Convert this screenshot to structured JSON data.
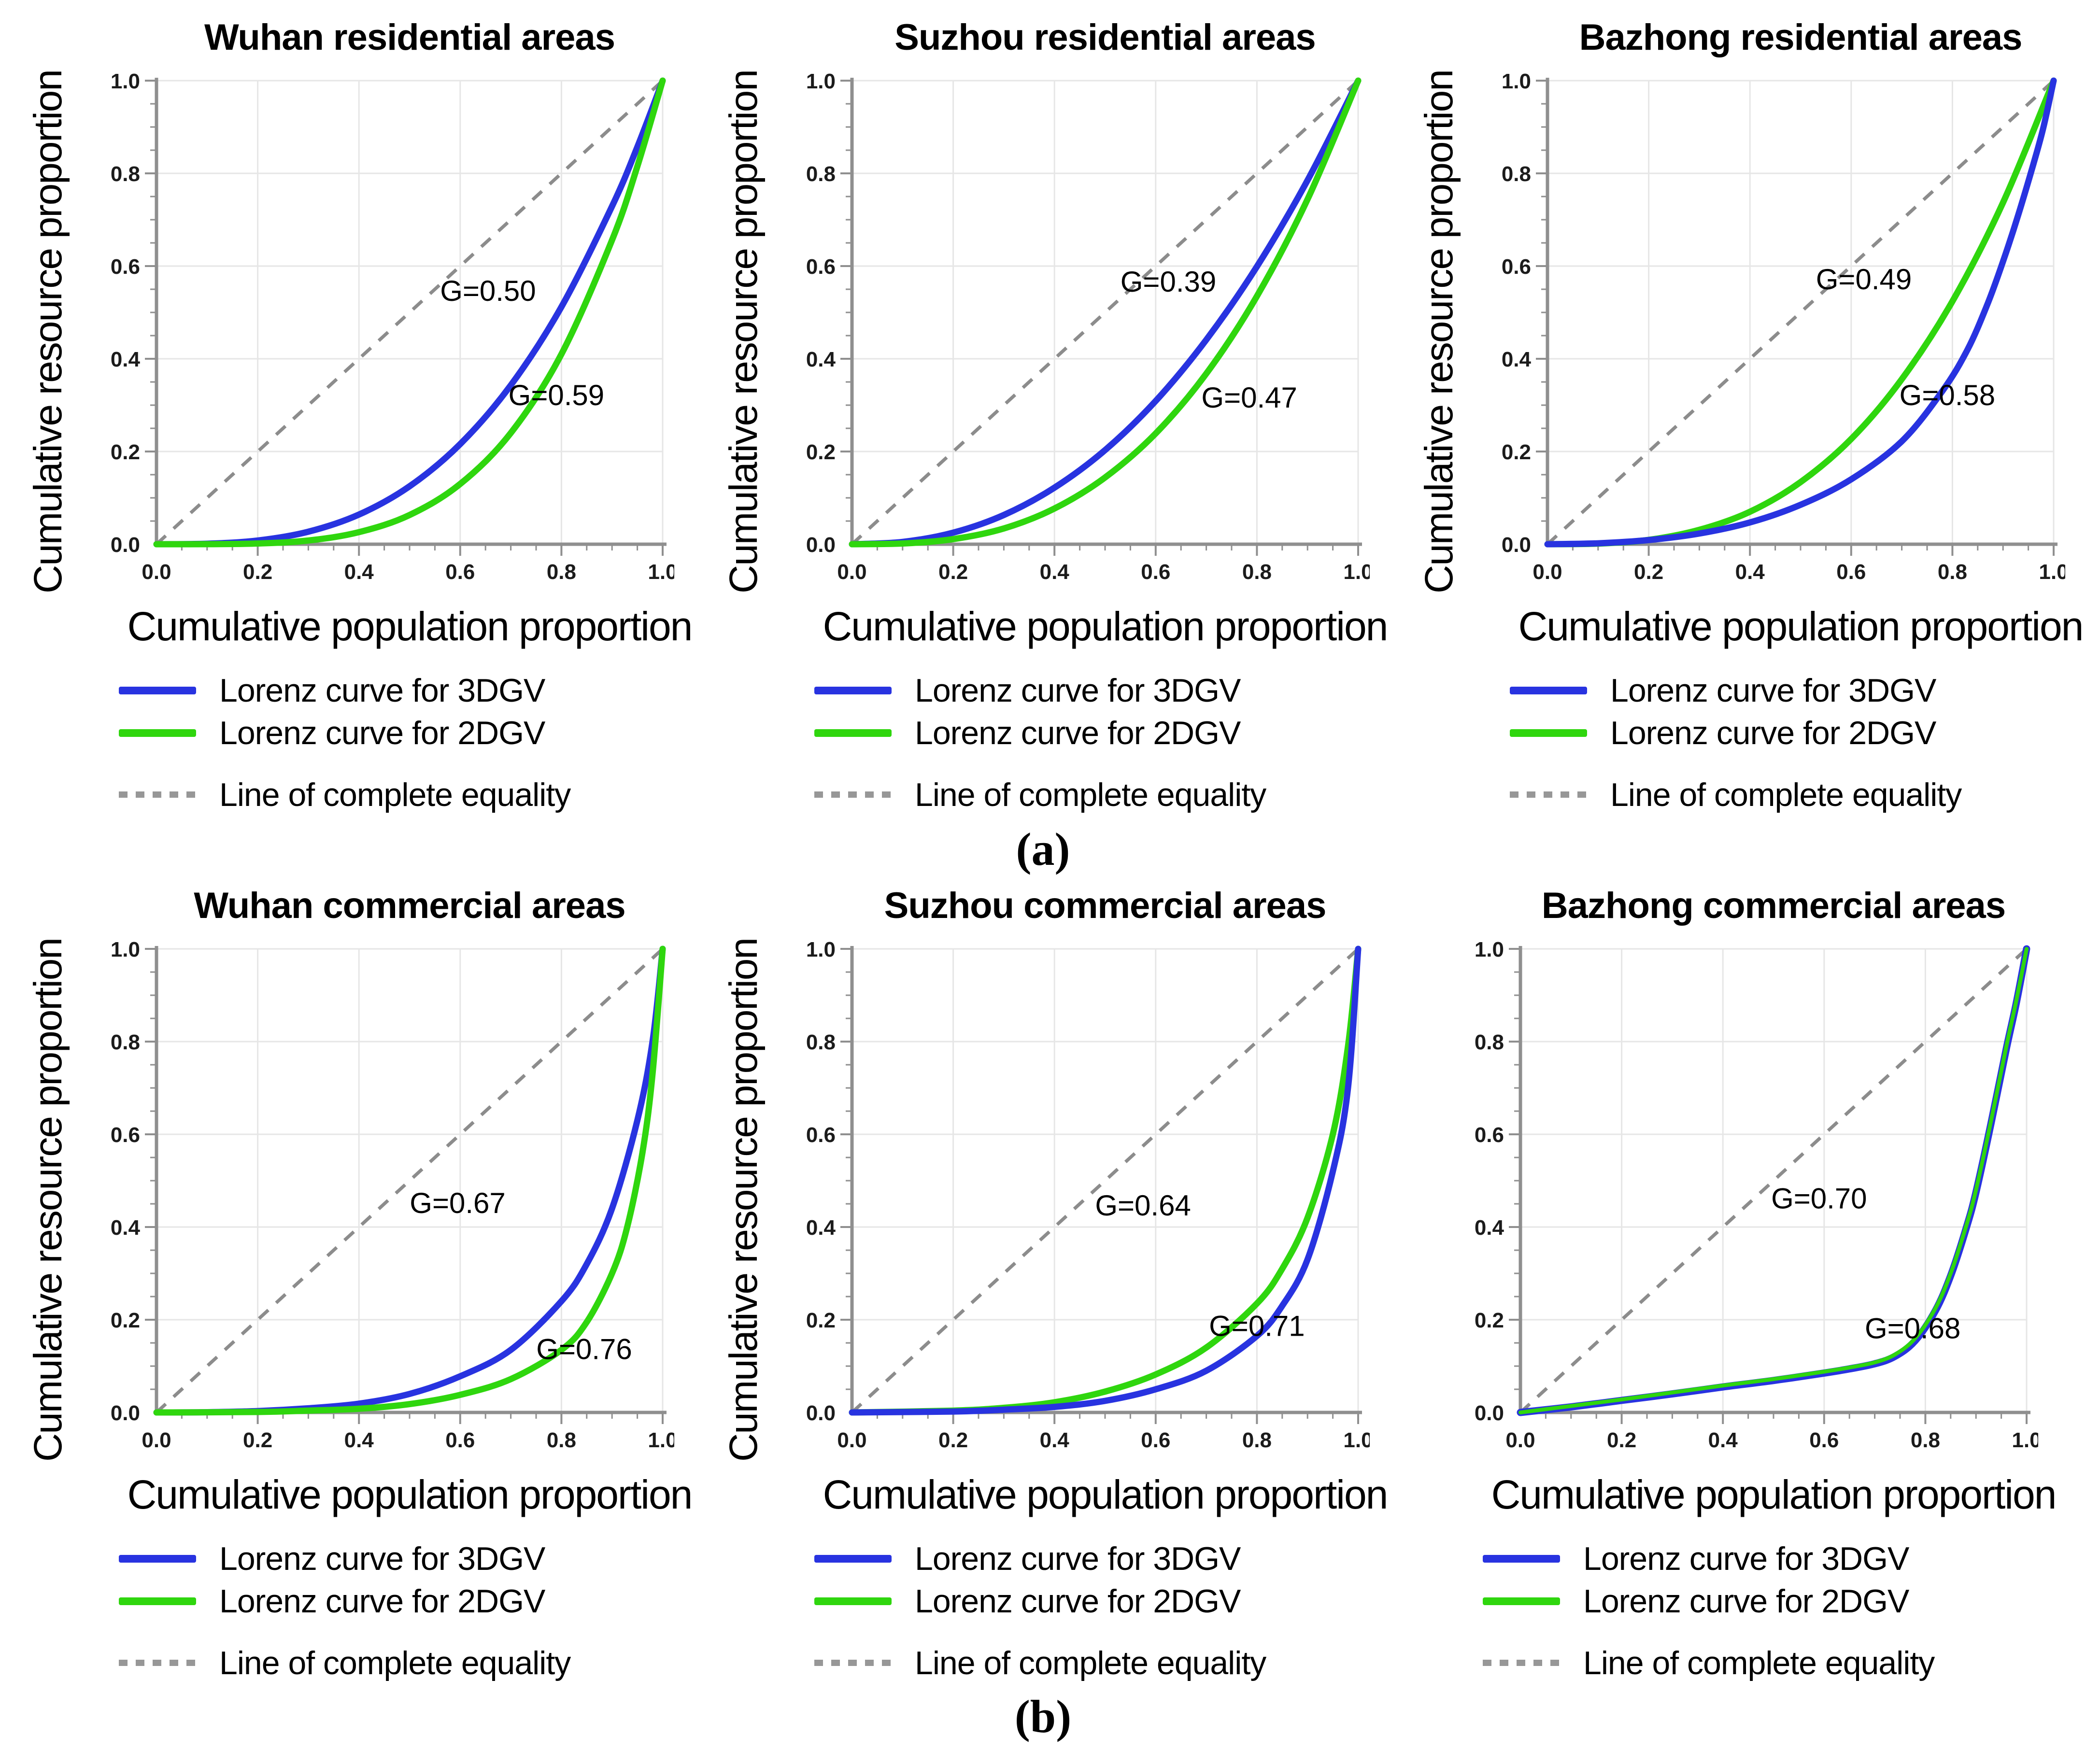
{
  "figure": {
    "panel_a_label": "(a)",
    "panel_b_label": "(b)"
  },
  "axes": {
    "xlabel": "Cumulative population proportion",
    "ylabel": "Cumulative resource proportion",
    "xlim": [
      0.0,
      1.0
    ],
    "ylim": [
      0.0,
      1.0
    ],
    "ticks": [
      0.0,
      0.2,
      0.4,
      0.6,
      0.8,
      1.0
    ],
    "tick_labels": [
      "0.0",
      "0.2",
      "0.4",
      "0.6",
      "0.8",
      "1.0"
    ],
    "minor_tick_step": 0.05,
    "grid": true
  },
  "legend": {
    "position": "below-chart",
    "items": [
      {
        "id": "lorenz-3dgv",
        "label": "Lorenz curve for 3DGV",
        "color": "#2833e0",
        "style": "solid"
      },
      {
        "id": "lorenz-2dgv",
        "label": "Lorenz curve for 2DGV",
        "color": "#2fd60e",
        "style": "solid"
      },
      {
        "id": "equality",
        "label": "Line of complete equality",
        "color": "#979797",
        "style": "dashed"
      }
    ]
  },
  "style": {
    "grid_color": "#e6e6e6",
    "axis_color": "#8f8f8f",
    "tick_color": "#8f8f8f",
    "equality_color": "#8c8c8c",
    "curve_3dgv_color": "#2833e0",
    "curve_2dgv_color": "#2fd60e"
  },
  "chart_data": [
    {
      "type": "line",
      "panel": "a",
      "title": "Wuhan residential areas",
      "xlabel": "Cumulative population proportion",
      "ylabel": "Cumulative resource proportion",
      "series": [
        {
          "name": "Line of complete equality",
          "role": "equality",
          "points": [
            [
              0,
              0
            ],
            [
              1,
              1
            ]
          ]
        },
        {
          "name": "Lorenz curve for 3DGV",
          "role": "3dgv",
          "points": [
            [
              0,
              0
            ],
            [
              0.1,
              0.001
            ],
            [
              0.2,
              0.008
            ],
            [
              0.3,
              0.027
            ],
            [
              0.4,
              0.064
            ],
            [
              0.5,
              0.125
            ],
            [
              0.6,
              0.216
            ],
            [
              0.7,
              0.343
            ],
            [
              0.8,
              0.512
            ],
            [
              0.9,
              0.729
            ],
            [
              0.95,
              0.857
            ],
            [
              1,
              1
            ]
          ]
        },
        {
          "name": "Lorenz curve for 2DGV",
          "role": "2dgv",
          "points": [
            [
              0,
              0
            ],
            [
              0.1,
              0.0001
            ],
            [
              0.2,
              0.0016
            ],
            [
              0.3,
              0.008
            ],
            [
              0.4,
              0.026
            ],
            [
              0.5,
              0.063
            ],
            [
              0.6,
              0.13
            ],
            [
              0.7,
              0.24
            ],
            [
              0.8,
              0.41
            ],
            [
              0.9,
              0.656
            ],
            [
              0.95,
              0.815
            ],
            [
              1,
              1
            ]
          ]
        }
      ],
      "annotations": [
        {
          "text": "G=0.50",
          "x": 0.655,
          "y": 0.525
        },
        {
          "text": "G=0.59",
          "x": 0.79,
          "y": 0.3
        }
      ]
    },
    {
      "type": "line",
      "panel": "a",
      "title": "Suzhou residential areas",
      "xlabel": "Cumulative population proportion",
      "ylabel": "Cumulative resource proportion",
      "series": [
        {
          "name": "Line of complete equality",
          "role": "equality",
          "points": [
            [
              0,
              0
            ],
            [
              1,
              1
            ]
          ]
        },
        {
          "name": "Lorenz curve for 3DGV",
          "role": "3dgv",
          "points": [
            [
              0,
              0
            ],
            [
              0.1,
              0.005
            ],
            [
              0.2,
              0.025
            ],
            [
              0.3,
              0.063
            ],
            [
              0.4,
              0.122
            ],
            [
              0.5,
              0.203
            ],
            [
              0.6,
              0.309
            ],
            [
              0.7,
              0.441
            ],
            [
              0.8,
              0.599
            ],
            [
              0.9,
              0.785
            ],
            [
              1,
              1
            ]
          ]
        },
        {
          "name": "Lorenz curve for 2DGV",
          "role": "2dgv",
          "points": [
            [
              0,
              0
            ],
            [
              0.1,
              0.0016
            ],
            [
              0.2,
              0.011
            ],
            [
              0.3,
              0.034
            ],
            [
              0.4,
              0.077
            ],
            [
              0.5,
              0.144
            ],
            [
              0.6,
              0.239
            ],
            [
              0.7,
              0.368
            ],
            [
              0.8,
              0.535
            ],
            [
              0.9,
              0.744
            ],
            [
              1,
              1
            ]
          ]
        }
      ],
      "annotations": [
        {
          "text": "G=0.39",
          "x": 0.625,
          "y": 0.545
        },
        {
          "text": "G=0.47",
          "x": 0.785,
          "y": 0.295
        }
      ]
    },
    {
      "type": "line",
      "panel": "a",
      "title": "Bazhong residential areas",
      "xlabel": "Cumulative population proportion",
      "ylabel": "Cumulative resource proportion",
      "series": [
        {
          "name": "Line of complete equality",
          "role": "equality",
          "points": [
            [
              0,
              0
            ],
            [
              1,
              1
            ]
          ]
        },
        {
          "name": "Lorenz curve for 2DGV",
          "role": "2dgv",
          "points": [
            [
              0,
              0
            ],
            [
              0.1,
              0.0013
            ],
            [
              0.2,
              0.0094
            ],
            [
              0.3,
              0.031
            ],
            [
              0.4,
              0.07
            ],
            [
              0.5,
              0.134
            ],
            [
              0.6,
              0.227
            ],
            [
              0.7,
              0.356
            ],
            [
              0.8,
              0.524
            ],
            [
              0.9,
              0.737
            ],
            [
              1,
              1
            ]
          ]
        },
        {
          "name": "Lorenz curve for 3DGV",
          "role": "3dgv",
          "points": [
            [
              0,
              0
            ],
            [
              0.1,
              0.002
            ],
            [
              0.2,
              0.009
            ],
            [
              0.3,
              0.023
            ],
            [
              0.4,
              0.047
            ],
            [
              0.5,
              0.085
            ],
            [
              0.6,
              0.14
            ],
            [
              0.7,
              0.222
            ],
            [
              0.78,
              0.33
            ],
            [
              0.83,
              0.42
            ],
            [
              0.87,
              0.52
            ],
            [
              0.9,
              0.61
            ],
            [
              0.93,
              0.71
            ],
            [
              0.96,
              0.82
            ],
            [
              0.98,
              0.9
            ],
            [
              1,
              1
            ]
          ]
        }
      ],
      "annotations": [
        {
          "text": "G=0.49",
          "x": 0.625,
          "y": 0.55
        },
        {
          "text": "G=0.58",
          "x": 0.79,
          "y": 0.3
        }
      ]
    },
    {
      "type": "line",
      "panel": "b",
      "title": "Wuhan commercial areas",
      "xlabel": "Cumulative population proportion",
      "ylabel": "Cumulative resource proportion",
      "series": [
        {
          "name": "Line of complete equality",
          "role": "equality",
          "points": [
            [
              0,
              0
            ],
            [
              1,
              1
            ]
          ]
        },
        {
          "name": "Lorenz curve for 3DGV",
          "role": "3dgv",
          "points": [
            [
              0,
              0
            ],
            [
              0.1,
              0.0005
            ],
            [
              0.2,
              0.003
            ],
            [
              0.3,
              0.009
            ],
            [
              0.4,
              0.019
            ],
            [
              0.5,
              0.04
            ],
            [
              0.6,
              0.078
            ],
            [
              0.7,
              0.135
            ],
            [
              0.8,
              0.24
            ],
            [
              0.85,
              0.32
            ],
            [
              0.9,
              0.44
            ],
            [
              0.95,
              0.63
            ],
            [
              0.98,
              0.8
            ],
            [
              1,
              1
            ]
          ]
        },
        {
          "name": "Lorenz curve for 2DGV",
          "role": "2dgv",
          "points": [
            [
              0,
              0
            ],
            [
              0.2,
              0.001
            ],
            [
              0.3,
              0.004
            ],
            [
              0.4,
              0.008
            ],
            [
              0.5,
              0.018
            ],
            [
              0.6,
              0.038
            ],
            [
              0.7,
              0.072
            ],
            [
              0.8,
              0.135
            ],
            [
              0.85,
              0.195
            ],
            [
              0.9,
              0.3
            ],
            [
              0.93,
              0.4
            ],
            [
              0.96,
              0.56
            ],
            [
              0.98,
              0.73
            ],
            [
              1,
              1
            ]
          ]
        }
      ],
      "annotations": [
        {
          "text": "G=0.67",
          "x": 0.595,
          "y": 0.43
        },
        {
          "text": "G=0.76",
          "x": 0.845,
          "y": 0.115
        }
      ]
    },
    {
      "type": "line",
      "panel": "b",
      "title": "Suzhou commercial areas",
      "xlabel": "Cumulative population proportion",
      "ylabel": "Cumulative resource proportion",
      "series": [
        {
          "name": "Line of complete equality",
          "role": "equality",
          "points": [
            [
              0,
              0
            ],
            [
              1,
              1
            ]
          ]
        },
        {
          "name": "Lorenz curve for 2DGV",
          "role": "2dgv",
          "points": [
            [
              0,
              0
            ],
            [
              0.2,
              0.004
            ],
            [
              0.3,
              0.01
            ],
            [
              0.4,
              0.022
            ],
            [
              0.5,
              0.045
            ],
            [
              0.6,
              0.082
            ],
            [
              0.7,
              0.14
            ],
            [
              0.8,
              0.235
            ],
            [
              0.85,
              0.31
            ],
            [
              0.9,
              0.42
            ],
            [
              0.95,
              0.6
            ],
            [
              0.98,
              0.79
            ],
            [
              1,
              1
            ]
          ]
        },
        {
          "name": "Lorenz curve for 3DGV",
          "role": "3dgv",
          "points": [
            [
              0,
              0
            ],
            [
              0.2,
              0.002
            ],
            [
              0.3,
              0.006
            ],
            [
              0.4,
              0.012
            ],
            [
              0.5,
              0.025
            ],
            [
              0.6,
              0.05
            ],
            [
              0.7,
              0.09
            ],
            [
              0.8,
              0.165
            ],
            [
              0.85,
              0.23
            ],
            [
              0.9,
              0.33
            ],
            [
              0.95,
              0.52
            ],
            [
              0.98,
              0.7
            ],
            [
              1,
              1
            ]
          ]
        }
      ],
      "annotations": [
        {
          "text": "G=0.64",
          "x": 0.575,
          "y": 0.425
        },
        {
          "text": "G=0.71",
          "x": 0.8,
          "y": 0.165
        }
      ]
    },
    {
      "type": "line",
      "panel": "b",
      "title": "Bazhong commercial areas",
      "xlabel": "Cumulative population proportion",
      "ylabel": "",
      "series": [
        {
          "name": "Line of complete equality",
          "role": "equality",
          "points": [
            [
              0,
              0
            ],
            [
              1,
              1
            ]
          ]
        },
        {
          "name": "Lorenz curve for 3DGV",
          "role": "3dgv",
          "width": 15,
          "points": [
            [
              0,
              0
            ],
            [
              0.1,
              0.012
            ],
            [
              0.2,
              0.026
            ],
            [
              0.3,
              0.04
            ],
            [
              0.4,
              0.055
            ],
            [
              0.5,
              0.069
            ],
            [
              0.6,
              0.085
            ],
            [
              0.65,
              0.094
            ],
            [
              0.7,
              0.105
            ],
            [
              0.74,
              0.121
            ],
            [
              0.78,
              0.155
            ],
            [
              0.82,
              0.22
            ],
            [
              0.85,
              0.295
            ],
            [
              0.88,
              0.395
            ],
            [
              0.9,
              0.475
            ],
            [
              0.93,
              0.625
            ],
            [
              0.96,
              0.785
            ],
            [
              0.98,
              0.885
            ],
            [
              1,
              1
            ]
          ]
        },
        {
          "name": "Lorenz curve for 2DGV",
          "role": "2dgv",
          "width": 8,
          "points": [
            [
              0,
              0
            ],
            [
              0.1,
              0.014
            ],
            [
              0.2,
              0.028
            ],
            [
              0.3,
              0.043
            ],
            [
              0.4,
              0.058
            ],
            [
              0.5,
              0.072
            ],
            [
              0.6,
              0.088
            ],
            [
              0.65,
              0.097
            ],
            [
              0.7,
              0.108
            ],
            [
              0.74,
              0.125
            ],
            [
              0.78,
              0.16
            ],
            [
              0.82,
              0.225
            ],
            [
              0.85,
              0.3
            ],
            [
              0.88,
              0.4
            ],
            [
              0.9,
              0.48
            ],
            [
              0.93,
              0.63
            ],
            [
              0.96,
              0.79
            ],
            [
              0.98,
              0.89
            ],
            [
              1,
              1
            ]
          ]
        }
      ],
      "annotations": [
        {
          "text": "G=0.70",
          "x": 0.59,
          "y": 0.44
        },
        {
          "text": "G=0.68",
          "x": 0.775,
          "y": 0.16
        }
      ]
    }
  ]
}
